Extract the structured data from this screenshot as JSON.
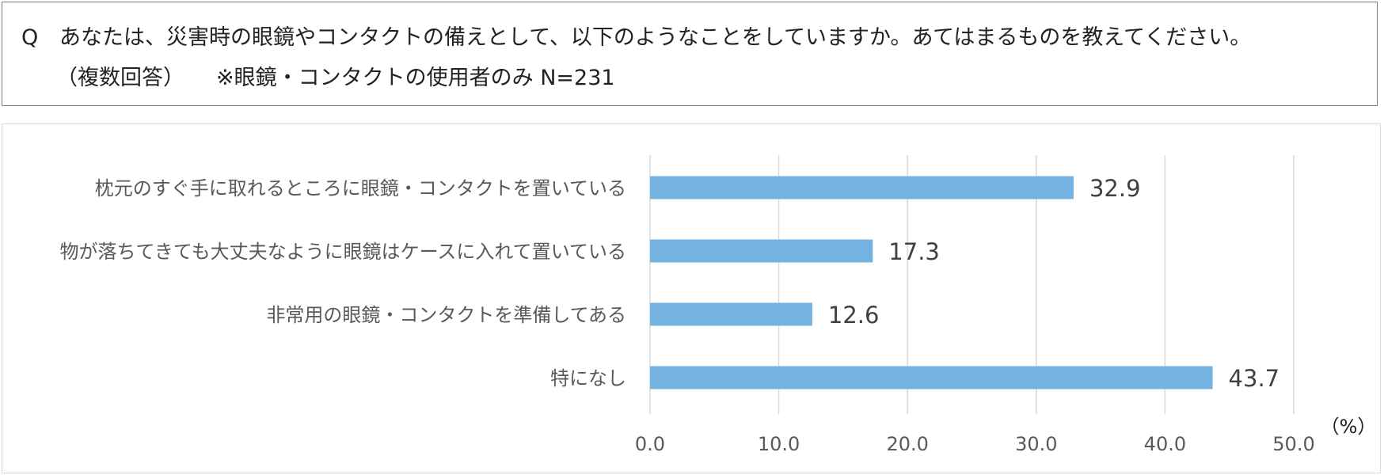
{
  "question": {
    "marker": "Q",
    "text": "あなたは、災害時の眼鏡やコンタクトの備えとして、以下のようなことをしていますか。あてはまるものを教えてください。",
    "note": "（複数回答）",
    "respondents": "※眼鏡・コンタクトの使用者のみ N=231"
  },
  "chart_data": {
    "type": "bar",
    "orientation": "horizontal",
    "categories": [
      "枕元のすぐ手に取れるところに眼鏡・コンタクトを置いている",
      "物が落ちてきても大丈夫なように眼鏡はケースに入れて置いている",
      "非常用の眼鏡・コンタクトを準備してある",
      "特になし"
    ],
    "values": [
      32.9,
      17.3,
      12.6,
      43.7
    ],
    "value_labels": [
      "32.9",
      "17.3",
      "12.6",
      "43.7"
    ],
    "xlim": [
      0,
      50
    ],
    "ticks": [
      "0.0",
      "10.0",
      "20.0",
      "30.0",
      "40.0",
      "50.0"
    ],
    "unit_label": "（%）",
    "grid": true,
    "legend": "none",
    "bar_color": "#74b2e2",
    "grid_color": "#d9d9d9",
    "text_color": "#595959"
  }
}
